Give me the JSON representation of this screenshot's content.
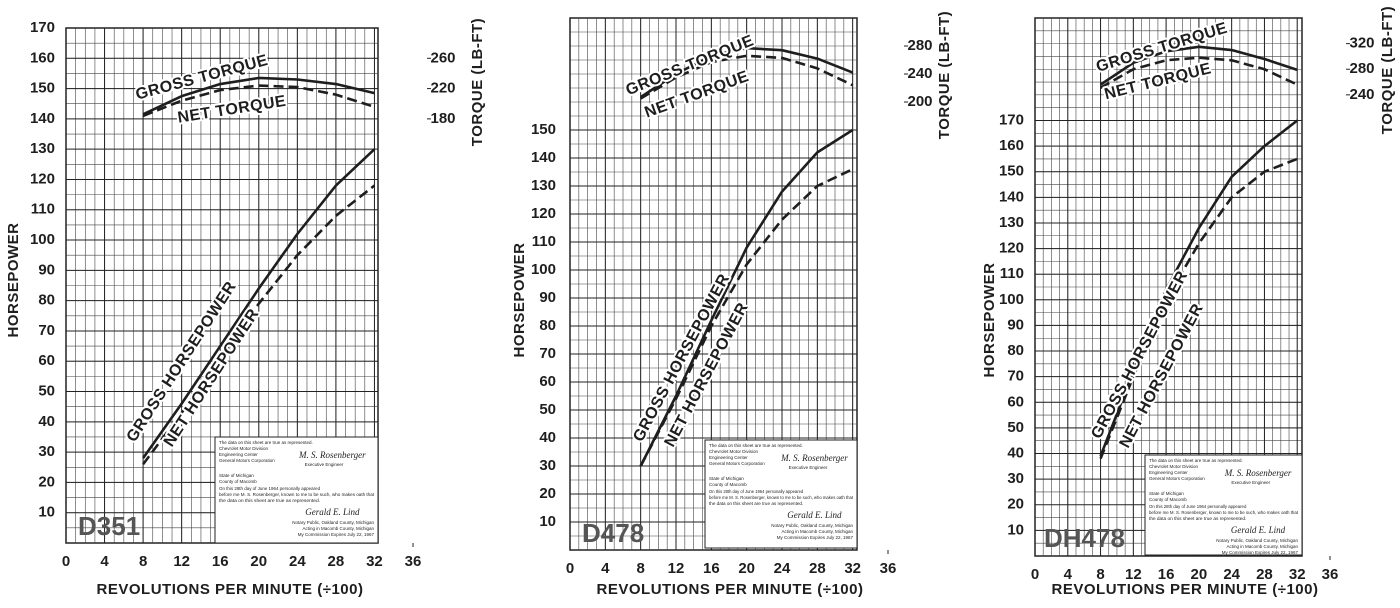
{
  "chart_data": [
    {
      "type": "line",
      "title": "D351",
      "x_label": "REVOLUTIONS PER MINUTE (÷100)",
      "y_label": "HORSEPOWER",
      "y2_label": "TORQUE (LB-FT)",
      "x": [
        8,
        12,
        16,
        20,
        24,
        28,
        32
      ],
      "xlim": [
        0,
        36
      ],
      "xticks": [
        0,
        4,
        8,
        12,
        16,
        20,
        24,
        28,
        32,
        36
      ],
      "ylim": [
        0,
        170
      ],
      "yticks": [
        10,
        20,
        30,
        40,
        50,
        60,
        70,
        80,
        90,
        100,
        110,
        120,
        130,
        140,
        150,
        160,
        170
      ],
      "y2lim": [
        -380,
        300
      ],
      "y2ticks": [
        180,
        220,
        260
      ],
      "grid": true,
      "series": [
        {
          "name": "GROSS TORQUE",
          "color": "#1e1e1e",
          "dash": false,
          "axis": "y2",
          "values": [
            186,
            210,
            226,
            234,
            232,
            226,
            214
          ]
        },
        {
          "name": "NET TORQUE",
          "color": "#1e1e1e",
          "dash": true,
          "axis": "y2",
          "values": [
            184,
            204,
            218,
            224,
            222,
            212,
            196
          ]
        },
        {
          "name": "GROSS HORSEPOWER",
          "color": "#1e1e1e",
          "dash": false,
          "values": [
            28,
            46,
            65,
            84,
            102,
            118,
            130
          ]
        },
        {
          "name": "NET HORSEPOWER",
          "color": "#1e1e1e",
          "dash": true,
          "values": [
            26,
            43,
            61,
            79,
            95,
            108,
            118
          ]
        }
      ],
      "certificate": {
        "header": [
          "The data on this sheet are true as represented.",
          "Chevrolet Motor Division",
          "Engineering Center",
          "General Motors Corporation"
        ],
        "signature_1": "M. S. Rosenberger",
        "title_1": "Executive Engineer",
        "state": [
          "State of Michigan",
          "County of Macomb"
        ],
        "oath": [
          "On this 28th day of June 1964 personally appeared",
          "before me M. S. Rosenberger, known to me to be such, who makes oath that",
          "the data on this sheet are true as represented."
        ],
        "signature_2": "Gerald E. Lind",
        "notary": [
          "Notary Public, Oakland County, Michigan",
          "Acting in Macomb County, Michigan",
          "My Commission Expires July 22, 1967"
        ]
      }
    },
    {
      "type": "line",
      "title": "D478",
      "x_label": "REVOLUTIONS PER MINUTE (÷100)",
      "y_label": "HORSEPOWER",
      "y2_label": "TORQUE (LB-FT)",
      "x": [
        8,
        12,
        16,
        20,
        24,
        28,
        32
      ],
      "xlim": [
        0,
        36
      ],
      "xticks": [
        0,
        4,
        8,
        12,
        16,
        20,
        24,
        28,
        32,
        36
      ],
      "ylim": [
        0,
        190
      ],
      "yticks": [
        10,
        20,
        30,
        40,
        50,
        60,
        70,
        80,
        90,
        100,
        110,
        120,
        130,
        140,
        150
      ],
      "y2lim": [
        -440,
        320
      ],
      "y2ticks": [
        200,
        240,
        280
      ],
      "grid": true,
      "series": [
        {
          "name": "GROSS TORQUE",
          "color": "#1e1e1e",
          "dash": false,
          "axis": "y2",
          "values": [
            207,
            240,
            266,
            277,
            274,
            262,
            242
          ]
        },
        {
          "name": "NET TORQUE",
          "color": "#1e1e1e",
          "dash": true,
          "axis": "y2",
          "values": [
            205,
            235,
            257,
            266,
            263,
            248,
            224
          ]
        },
        {
          "name": "GROSS HORSEPOWER",
          "color": "#1e1e1e",
          "dash": false,
          "values": [
            30,
            55,
            82,
            108,
            128,
            142,
            150
          ]
        },
        {
          "name": "NET HORSEPOWER",
          "color": "#1e1e1e",
          "dash": true,
          "values": [
            30,
            54,
            80,
            102,
            118,
            130,
            136
          ]
        }
      ],
      "certificate": {
        "header": [
          "The data on this sheet are true as represented.",
          "Chevrolet Motor Division",
          "Engineering Center",
          "General Motors Corporation"
        ],
        "signature_1": "M. S. Rosenberger",
        "title_1": "Executive Engineer",
        "state": [
          "State of Michigan",
          "County of Macomb"
        ],
        "oath": [
          "On this 28th day of June 1964 personally appeared",
          "before me M. S. Rosenberger, known to me to be such, who makes oath that",
          "the data on this sheet are true as represented."
        ],
        "signature_2": "Gerald E. Lind",
        "notary": [
          "Notary Public, Oakland County, Michigan",
          "Acting in Macomb County, Michigan",
          "My Commission Expires July 22, 1967"
        ]
      }
    },
    {
      "type": "line",
      "title": "DH478",
      "x_label": "REVOLUTIONS PER MINUTE (÷100)",
      "y_label": "HORSEPOWER",
      "y2_label": "TORQUE (LB-FT)",
      "x": [
        8,
        12,
        16,
        20,
        24,
        28,
        32
      ],
      "xlim": [
        0,
        36
      ],
      "xticks": [
        0,
        4,
        8,
        12,
        16,
        20,
        24,
        28,
        32,
        36
      ],
      "ylim": [
        0,
        210
      ],
      "yticks": [
        10,
        20,
        30,
        40,
        50,
        60,
        70,
        80,
        90,
        100,
        110,
        120,
        130,
        140,
        150,
        160,
        170
      ],
      "y2lim": [
        -480,
        360
      ],
      "y2ticks": [
        240,
        280,
        320
      ],
      "grid": true,
      "series": [
        {
          "name": "GROSS TORQUE",
          "color": "#1e1e1e",
          "dash": false,
          "axis": "y2",
          "values": [
            256,
            290,
            308,
            315,
            310,
            296,
            279
          ]
        },
        {
          "name": "NET TORQUE",
          "color": "#1e1e1e",
          "dash": true,
          "axis": "y2",
          "values": [
            251,
            280,
            294,
            298,
            294,
            280,
            256
          ]
        },
        {
          "name": "GROSS HORSEPOWER",
          "color": "#1e1e1e",
          "dash": false,
          "values": [
            39,
            72,
            104,
            128,
            148,
            160,
            170
          ]
        },
        {
          "name": "NET HORSEPOWER",
          "color": "#1e1e1e",
          "dash": true,
          "values": [
            38,
            70,
            100,
            122,
            140,
            150,
            155
          ]
        }
      ],
      "certificate": {
        "header": [
          "The data on this sheet are true as represented.",
          "Chevrolet Motor Division",
          "Engineering Center",
          "General Motors Corporation"
        ],
        "signature_1": "M. S. Rosenberger",
        "title_1": "Executive Engineer",
        "state": [
          "State of Michigan",
          "County of Macomb"
        ],
        "oath": [
          "On this 28th day of June 1964 personally appeared",
          "before me M. S. Rosenberger, known to me to be such, who makes oath that",
          "the data on this sheet are true as represented."
        ],
        "signature_2": "Gerald E. Lind",
        "notary": [
          "Notary Public, Oakland County, Michigan",
          "Acting in Macomb County, Michigan",
          "My Commission Expires July 22, 1967"
        ]
      }
    }
  ]
}
